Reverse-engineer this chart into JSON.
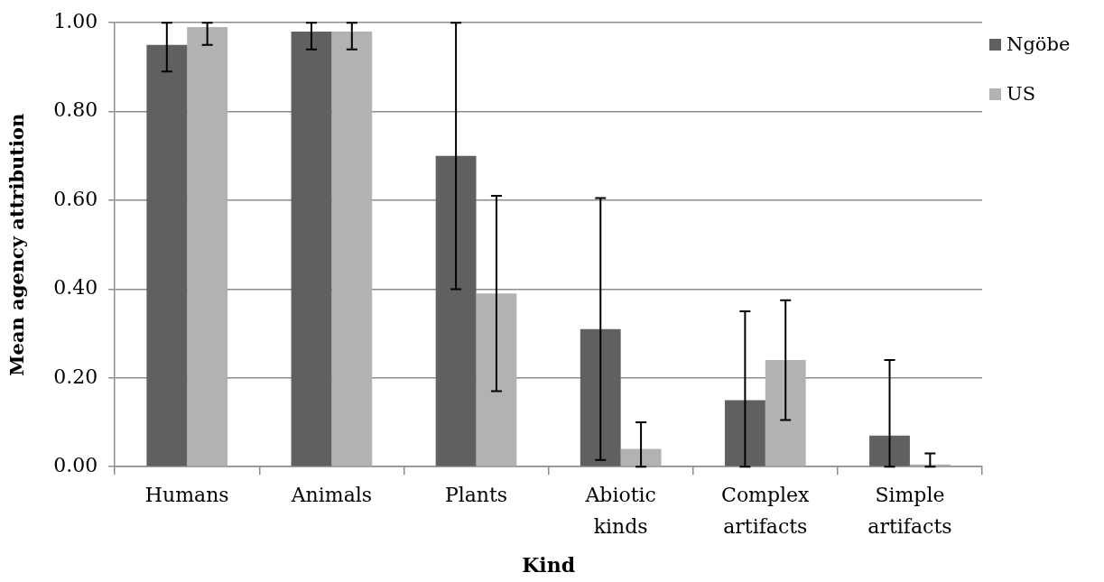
{
  "chart_data": {
    "type": "bar",
    "xlabel": "Kind",
    "ylabel": "Mean agency attribution",
    "categories": [
      "Humans",
      "Animals",
      "Plants",
      "Abiotic kinds",
      "Complex artifacts",
      "Simple artifacts"
    ],
    "series": [
      {
        "name": "Ngöbe",
        "color": "#606060",
        "values": [
          0.95,
          0.98,
          0.7,
          0.31,
          0.15,
          0.07
        ],
        "errors": [
          [
            0.89,
            1.0
          ],
          [
            0.94,
            1.0
          ],
          [
            0.4,
            1.0
          ],
          [
            0.015,
            0.605
          ],
          [
            0,
            0.35
          ],
          [
            0,
            0.24
          ]
        ]
      },
      {
        "name": "US",
        "color": "#b2b2b2",
        "values": [
          0.99,
          0.98,
          0.39,
          0.04,
          0.24,
          0.005
        ],
        "errors": [
          [
            0.95,
            1.0
          ],
          [
            0.94,
            1.0
          ],
          [
            0.17,
            0.61
          ],
          [
            0,
            0.1
          ],
          [
            0.105,
            0.375
          ],
          [
            0,
            0.03
          ]
        ]
      }
    ],
    "ylim": [
      0,
      1.0
    ],
    "yticks": [
      {
        "value": 0,
        "label": "0.00"
      },
      {
        "value": 0.2,
        "label": "0.20"
      },
      {
        "value": 0.4,
        "label": "0.40"
      },
      {
        "value": 0.6,
        "label": "0.60"
      },
      {
        "value": 0.8,
        "label": "0.80"
      },
      {
        "value": 1.0,
        "label": "1.00"
      }
    ],
    "grid": "y",
    "legend": "top right"
  }
}
